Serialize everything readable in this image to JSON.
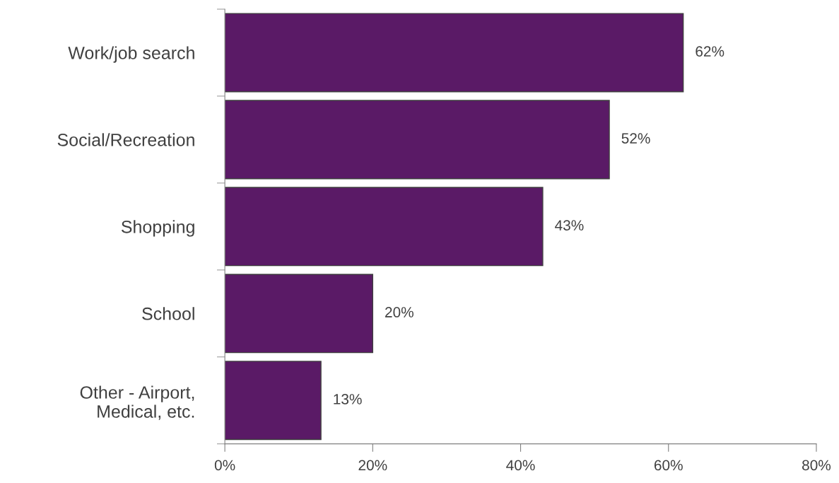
{
  "chart_data": {
    "type": "bar",
    "orientation": "horizontal",
    "categories": [
      "Work/job search",
      "Social/Recreation",
      "Shopping",
      "School",
      "Other - Airport,\nMedical, etc."
    ],
    "values": [
      62,
      52,
      43,
      20,
      13
    ],
    "color": "#5a1a66",
    "value_labels": [
      "62%",
      "52%",
      "43%",
      "20%",
      "13%"
    ],
    "xlim": [
      0,
      80
    ],
    "xticks": [
      {
        "value": 0,
        "label": "0%"
      },
      {
        "value": 20,
        "label": "20%"
      },
      {
        "value": 40,
        "label": "40%"
      },
      {
        "value": 60,
        "label": "60%"
      },
      {
        "value": 80,
        "label": "80%"
      }
    ],
    "grid": false
  }
}
